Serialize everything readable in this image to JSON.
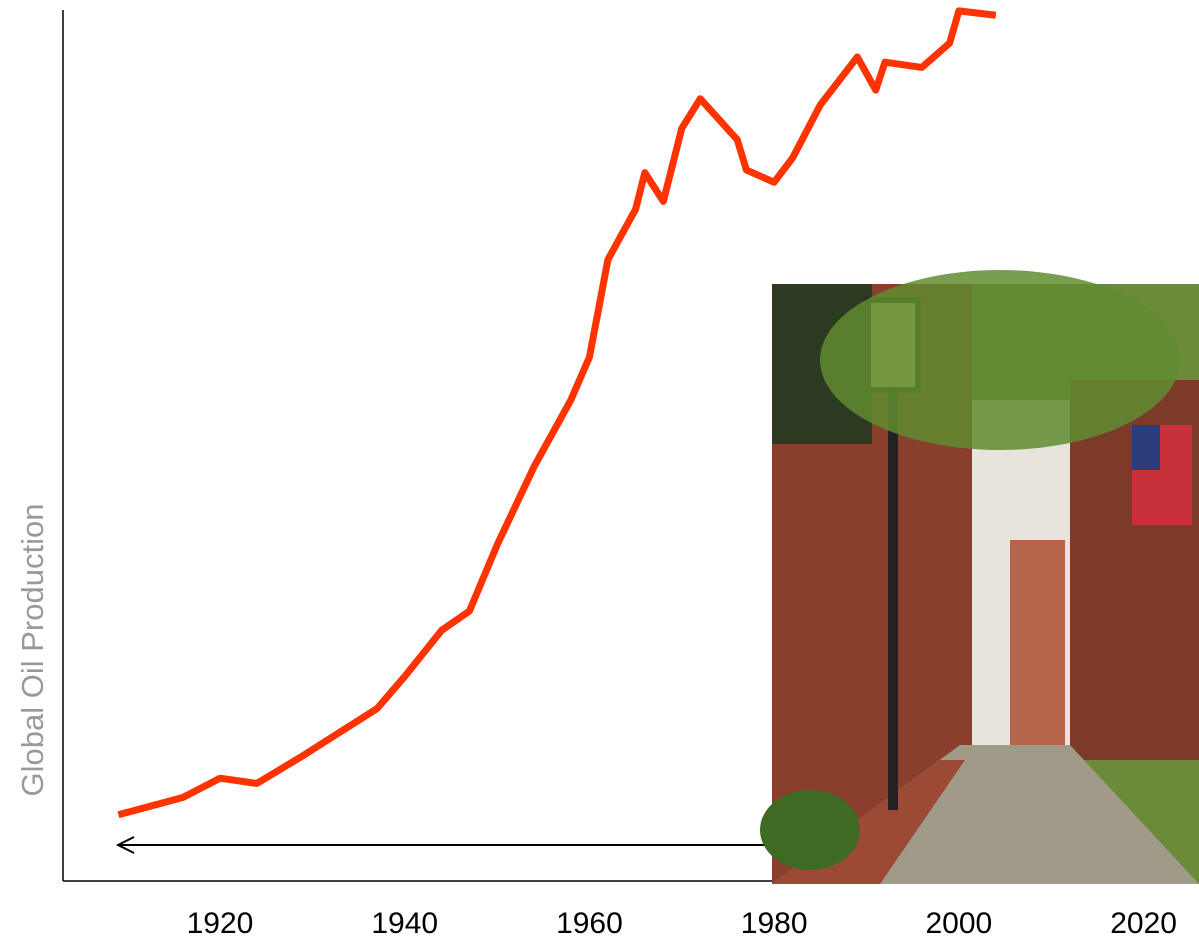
{
  "chart_data": {
    "type": "line",
    "y_label": "Global Oil Production",
    "x": [
      1909,
      1916,
      1920,
      1924,
      1929,
      1933,
      1937,
      1940,
      1944,
      1947,
      1950,
      1954,
      1958,
      1960,
      1962,
      1965,
      1966,
      1968,
      1970,
      1972,
      1976,
      1977,
      1980,
      1982,
      1985,
      1989,
      1991,
      1992,
      1996,
      1999,
      2000,
      2004
    ],
    "series": [
      {
        "color": "#ff3300",
        "values": [
          7.5,
          9.5,
          11.7,
          11.1,
          14.3,
          17,
          19.7,
          23.4,
          28.7,
          30.9,
          38.5,
          47.5,
          55.2,
          60.1,
          71.3,
          77.1,
          81.3,
          78,
          86.4,
          89.8,
          85.1,
          81.6,
          80.2,
          83,
          89.1,
          94.6,
          90.8,
          94,
          93.4,
          96.2,
          99.9,
          99.4
        ]
      }
    ],
    "xlim": [
      1903,
      2026
    ],
    "xticks": [
      1920,
      1940,
      1960,
      1980,
      2000,
      2020
    ],
    "ylim": [
      0,
      100
    ]
  }
}
